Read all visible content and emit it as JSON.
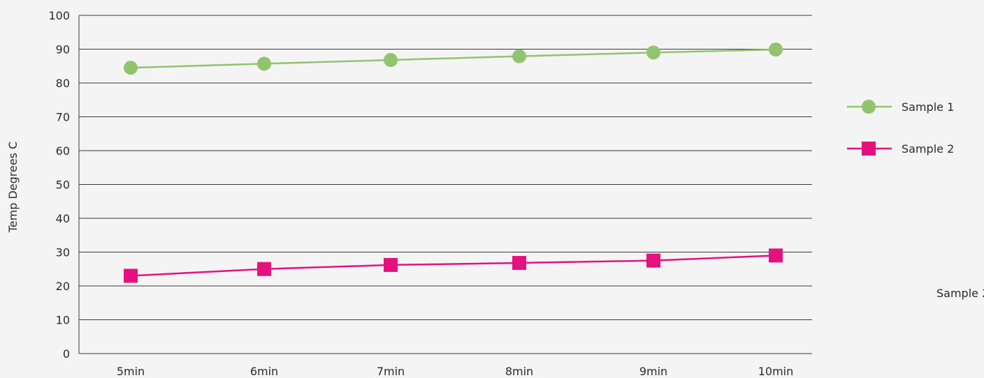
{
  "chart_data": {
    "type": "line",
    "title": "",
    "xlabel": "",
    "ylabel": "Temp Degrees C",
    "categories": [
      "5min",
      "6min",
      "7min",
      "8min",
      "9min",
      "10min"
    ],
    "ylim": [
      0,
      100
    ],
    "yticks": [
      0,
      10,
      20,
      30,
      40,
      50,
      60,
      70,
      80,
      90,
      100
    ],
    "grid": true,
    "legend_position": "right",
    "series": [
      {
        "name": "Sample 1",
        "values": [
          84.5,
          85.7,
          86.8,
          87.9,
          89.0,
          89.9
        ],
        "color": "#92c36e",
        "marker": "circle"
      },
      {
        "name": "Sample 2",
        "values": [
          23.0,
          25.0,
          26.2,
          26.8,
          27.5,
          29.0
        ],
        "color": "#e5117e",
        "marker": "square"
      }
    ],
    "annotations": [
      "Sample 2"
    ]
  }
}
